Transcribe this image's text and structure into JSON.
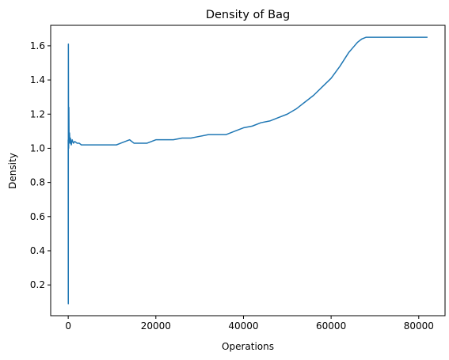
{
  "chart_data": {
    "type": "line",
    "title": "Density of Bag",
    "xlabel": "Operations",
    "ylabel": "Density",
    "xlim": [
      -4000,
      86000
    ],
    "ylim": [
      0.02,
      1.72
    ],
    "grid": false,
    "x_ticks": [
      0,
      20000,
      40000,
      60000,
      80000
    ],
    "x_tick_labels": [
      "0",
      "20000",
      "40000",
      "60000",
      "80000"
    ],
    "y_ticks": [
      0.2,
      0.4,
      0.6,
      0.8,
      1.0,
      1.2,
      1.4,
      1.6
    ],
    "y_tick_labels": [
      "0.2",
      "0.4",
      "0.6",
      "0.8",
      "1.0",
      "1.2",
      "1.4",
      "1.6"
    ],
    "series": [
      {
        "color": "#1f77b4",
        "x": [
          0,
          20,
          40,
          70,
          100,
          150,
          200,
          300,
          400,
          500,
          700,
          900,
          1200,
          1500,
          2000,
          2500,
          3000,
          4000,
          5000,
          6000,
          7000,
          8000,
          9000,
          10000,
          11000,
          12000,
          13000,
          14000,
          15000,
          16000,
          17000,
          18000,
          19000,
          20000,
          22000,
          24000,
          26000,
          28000,
          30000,
          32000,
          34000,
          36000,
          38000,
          40000,
          42000,
          44000,
          46000,
          48000,
          50000,
          52000,
          54000,
          56000,
          58000,
          60000,
          62000,
          64000,
          65000,
          66000,
          67000,
          68000,
          69000,
          70000,
          72000,
          74000,
          76000,
          78000,
          80000,
          82000
        ],
        "y": [
          1.05,
          0.09,
          1.61,
          1.2,
          1.0,
          1.24,
          1.04,
          1.09,
          1.03,
          1.06,
          1.02,
          1.05,
          1.03,
          1.04,
          1.03,
          1.03,
          1.02,
          1.02,
          1.02,
          1.02,
          1.02,
          1.02,
          1.02,
          1.02,
          1.02,
          1.03,
          1.04,
          1.05,
          1.03,
          1.03,
          1.03,
          1.03,
          1.04,
          1.05,
          1.05,
          1.05,
          1.06,
          1.06,
          1.07,
          1.08,
          1.08,
          1.08,
          1.1,
          1.12,
          1.13,
          1.15,
          1.16,
          1.18,
          1.2,
          1.23,
          1.27,
          1.31,
          1.36,
          1.41,
          1.48,
          1.56,
          1.59,
          1.62,
          1.64,
          1.65,
          1.65,
          1.65,
          1.65,
          1.65,
          1.65,
          1.65,
          1.65,
          1.65
        ]
      }
    ]
  }
}
